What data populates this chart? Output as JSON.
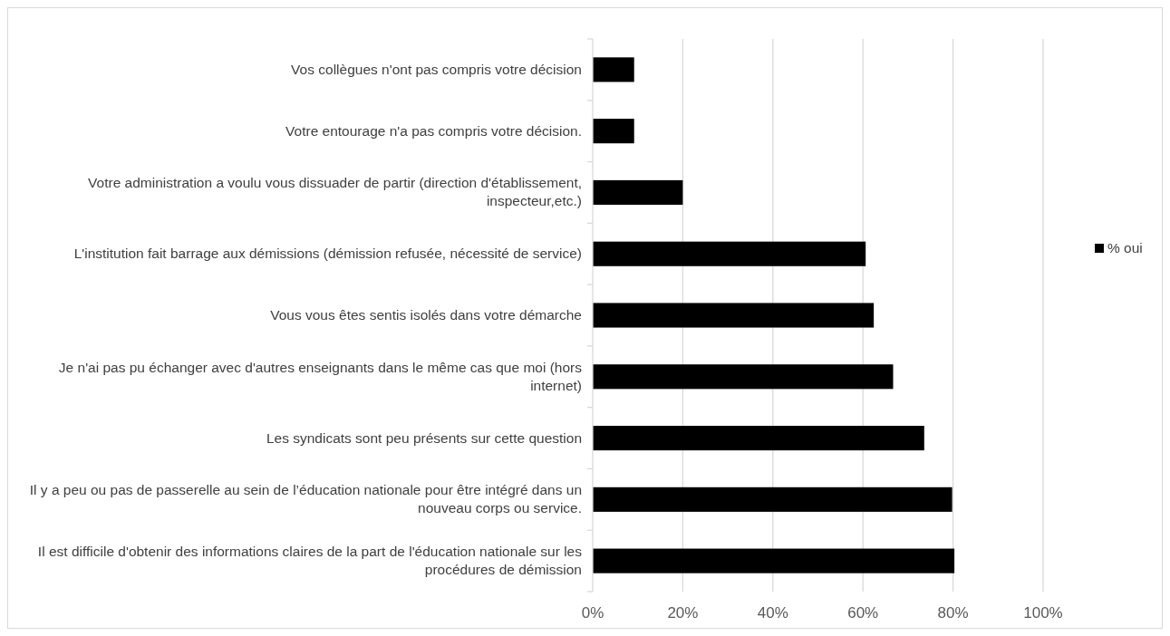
{
  "chart_data": {
    "type": "bar",
    "orientation": "horizontal",
    "categories": [
      "Vos collègues n'ont pas compris votre décision",
      "Votre entourage n'a pas compris votre décision.",
      "Votre administration a voulu vous dissuader de partir (direction d'établissement, inspecteur,etc.)",
      "L'institution fait barrage aux démissions (démission refusée, nécessité de service)",
      "Vous vous êtes sentis isolés dans votre démarche",
      "Je n'ai pas pu échanger avec d'autres enseignants dans le même cas que moi (hors internet)",
      "Les syndicats sont peu présents sur cette question",
      "Il y a peu ou pas de passerelle au sein de l’éducation nationale pour être intégré dans un nouveau corps ou service.",
      "Il est difficile d'obtenir des informations claires de la part de l'éducation nationale sur les procédures de démission"
    ],
    "series": [
      {
        "name": "% oui",
        "color": "#000000",
        "values": [
          9.2,
          9.2,
          20,
          60.6,
          62.4,
          66.7,
          73.6,
          79.8,
          80.3
        ]
      }
    ],
    "xlim": [
      0,
      100
    ],
    "xticks": [
      {
        "value": 0,
        "label": "0%"
      },
      {
        "value": 20,
        "label": "20%"
      },
      {
        "value": 40,
        "label": "40%"
      },
      {
        "value": 60,
        "label": "60%"
      },
      {
        "value": 80,
        "label": "80%"
      },
      {
        "value": 100,
        "label": "100%"
      }
    ],
    "grid": "x",
    "legend": "right"
  }
}
